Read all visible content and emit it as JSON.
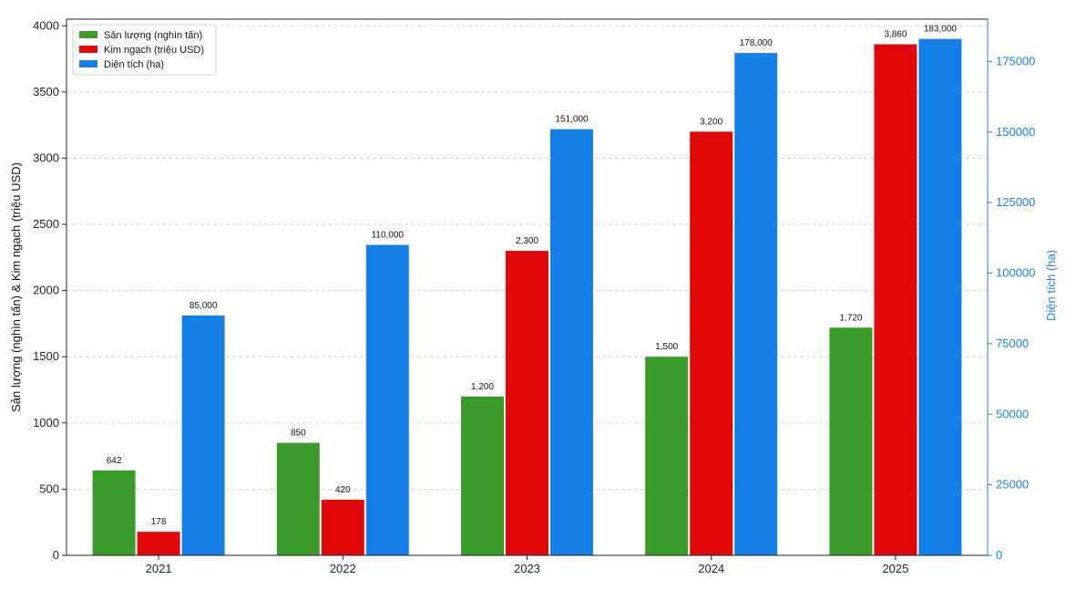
{
  "chart_data": {
    "type": "bar",
    "title": "",
    "categories": [
      "2021",
      "2022",
      "2023",
      "2024",
      "2025"
    ],
    "series": [
      {
        "name": "Sản lượng (nghìn tấn)",
        "axis": "left",
        "color": "#3a9a2a",
        "values": [
          642,
          850,
          1200,
          1500,
          1720
        ],
        "labels": [
          "642",
          "850",
          "1,200",
          "1,500",
          "1,720"
        ]
      },
      {
        "name": "Kim ngạch (triệu USD)",
        "axis": "left",
        "color": "#e00808",
        "values": [
          178,
          420,
          2300,
          3200,
          3860
        ],
        "labels": [
          "178",
          "420",
          "2,300",
          "3,200",
          "3,860"
        ]
      },
      {
        "name": "Diện tích (ha)",
        "axis": "right",
        "color": "#1380e8",
        "values": [
          85000,
          110000,
          151000,
          178000,
          183000
        ],
        "labels": [
          "85,000",
          "110,000",
          "151,000",
          "178,000",
          "183,000"
        ]
      }
    ],
    "ylabel": "Sản lượng (nghìn tấn) & Kim ngạch (triệu USD)",
    "ylabel_right": "Diện tích (ha)",
    "ylim": [
      0,
      4050
    ],
    "ylim_right": [
      0,
      190000
    ],
    "yticks": [
      0,
      500,
      1000,
      1500,
      2000,
      2500,
      3000,
      3500,
      4000
    ],
    "yticks_right": [
      0,
      25000,
      50000,
      75000,
      100000,
      125000,
      150000,
      175000
    ],
    "grid": true,
    "legend_position": "top-left"
  }
}
